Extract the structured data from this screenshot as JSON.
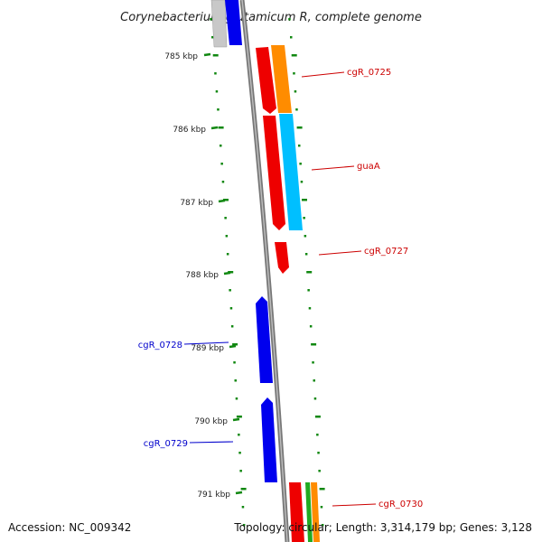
{
  "title": "Corynebacterium glutamicum R, complete genome",
  "footer": {
    "accession": "Accession: NC_009342",
    "topology": "Topology: circular; Length: 3,314,179 bp; Genes: 3,128"
  },
  "scale_labels": [
    "785 kbp",
    "786 kbp",
    "787 kbp",
    "788 kbp",
    "789 kbp",
    "790 kbp",
    "791 kbp"
  ],
  "colors": {
    "forward": "#ee0000",
    "reverse": "#0000ee",
    "label_forward": "#cc0000",
    "label_reverse": "#0000cc",
    "tick": "#118811",
    "backbone": "#888888",
    "orange": "#ff8c00",
    "cyan": "#00bfff",
    "green": "#22aa22",
    "grey": "#bbbbbb"
  },
  "gene_labels": [
    {
      "text": "cgR_0725",
      "strand": "forward"
    },
    {
      "text": "guaA",
      "strand": "forward"
    },
    {
      "text": "cgR_0727",
      "strand": "forward"
    },
    {
      "text": "cgR_0728",
      "strand": "reverse"
    },
    {
      "text": "cgR_0729",
      "strand": "reverse"
    },
    {
      "text": "cgR_0730",
      "strand": "forward"
    }
  ]
}
